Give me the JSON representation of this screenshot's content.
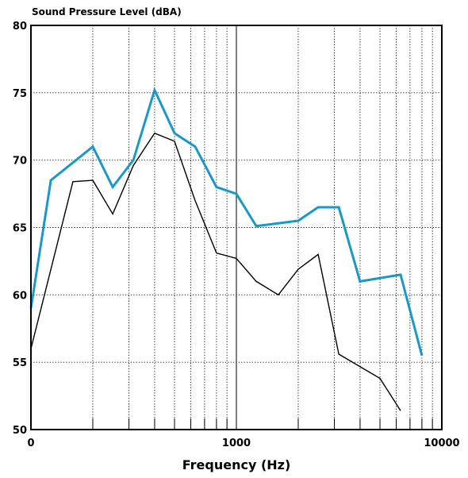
{
  "chart_data": {
    "type": "line",
    "ylabel": "Sound Pressure Level (dBA)",
    "xlabel": "Frequency (Hz)",
    "x_scale": "log",
    "xlim": [
      100,
      10000
    ],
    "ylim": [
      50,
      80
    ],
    "x_tick_labels": [
      "0",
      "1000",
      "10000"
    ],
    "y_ticks": [
      50,
      55,
      60,
      65,
      70,
      75,
      80
    ],
    "grid": true,
    "colors": {
      "blue_series": "#1a98c9",
      "black_series": "#000000"
    },
    "series": [
      {
        "color": "blue",
        "x": [
          100,
          125,
          200,
          250,
          315,
          400,
          500,
          630,
          800,
          1000,
          1250,
          2000,
          2500,
          3150,
          4000,
          6300,
          8000
        ],
        "y": [
          59.0,
          68.5,
          71.0,
          68.0,
          70.0,
          75.2,
          72.0,
          71.0,
          68.0,
          67.5,
          65.1,
          65.5,
          66.5,
          66.5,
          61.0,
          61.5,
          55.5
        ]
      },
      {
        "color": "black",
        "x": [
          100,
          160,
          200,
          250,
          315,
          400,
          500,
          630,
          800,
          1000,
          1250,
          1600,
          2000,
          2500,
          3150,
          5000,
          6300
        ],
        "y": [
          56.0,
          68.4,
          68.5,
          66.0,
          69.6,
          72.0,
          71.4,
          67.0,
          63.1,
          62.7,
          61.0,
          60.0,
          61.9,
          63.0,
          55.6,
          53.8,
          51.4
        ]
      }
    ]
  }
}
